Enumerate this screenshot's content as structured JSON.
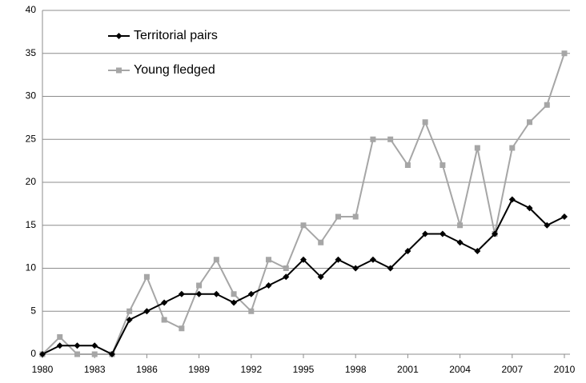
{
  "chart_data": {
    "type": "line",
    "x": [
      1980,
      1981,
      1982,
      1983,
      1984,
      1985,
      1986,
      1987,
      1988,
      1989,
      1990,
      1991,
      1992,
      1993,
      1994,
      1995,
      1996,
      1997,
      1998,
      1999,
      2000,
      2001,
      2002,
      2003,
      2004,
      2005,
      2006,
      2007,
      2008,
      2009,
      2010
    ],
    "series": [
      {
        "name": "Territorial pairs",
        "color": "#000000",
        "marker": "diamond",
        "values": [
          0,
          1,
          1,
          1,
          0,
          4,
          5,
          6,
          7,
          7,
          7,
          6,
          7,
          8,
          9,
          11,
          9,
          11,
          10,
          11,
          10,
          12,
          14,
          14,
          13,
          12,
          14,
          18,
          17,
          15,
          16
        ]
      },
      {
        "name": "Young fledged",
        "color": "#a6a6a6",
        "marker": "square",
        "values": [
          0,
          2,
          0,
          0,
          0,
          5,
          9,
          4,
          3,
          8,
          11,
          7,
          5,
          11,
          10,
          15,
          13,
          16,
          16,
          25,
          25,
          22,
          27,
          22,
          15,
          24,
          14,
          24,
          27,
          29,
          35
        ]
      }
    ],
    "xlim": [
      1980,
      2010
    ],
    "xticks": [
      1980,
      1983,
      1986,
      1989,
      1992,
      1995,
      1998,
      2001,
      2004,
      2007,
      2010
    ],
    "ylim": [
      0,
      40
    ],
    "yticks": [
      0,
      5,
      10,
      15,
      20,
      25,
      30,
      35,
      40
    ],
    "grid": true,
    "legend": "top-left"
  }
}
